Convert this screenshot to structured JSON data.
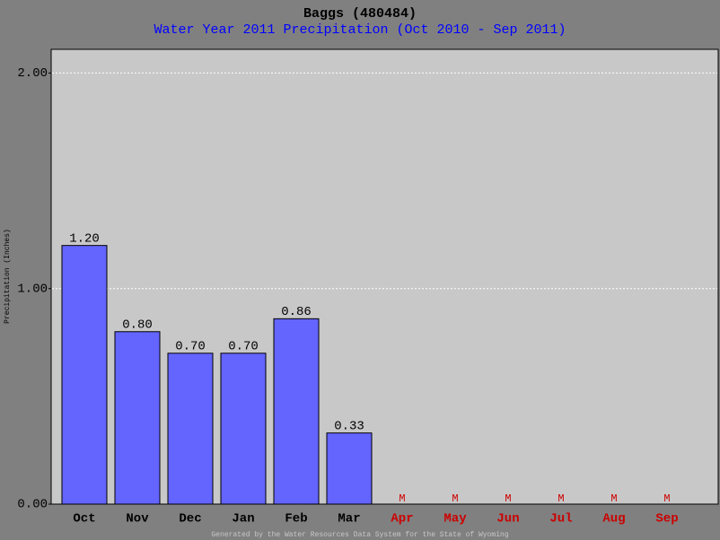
{
  "chart_data": {
    "type": "bar",
    "title": "Baggs (480484)",
    "subtitle": "Water Year 2011 Precipitation (Oct 2010 - Sep 2011)",
    "y_label": "Precipitation (Inches)",
    "footer": "Generated by the Water Resources Data System for the State of Wyoming",
    "categories": [
      "Oct",
      "Nov",
      "Dec",
      "Jan",
      "Feb",
      "Mar",
      "Apr",
      "May",
      "Jun",
      "Jul",
      "Aug",
      "Sep"
    ],
    "values": [
      1.2,
      0.8,
      0.7,
      0.7,
      0.86,
      0.33,
      null,
      null,
      null,
      null,
      null,
      null
    ],
    "value_labels": [
      "1.20",
      "0.80",
      "0.70",
      "0.70",
      "0.86",
      "0.33",
      "M",
      "M",
      "M",
      "M",
      "M",
      "M"
    ],
    "color": "#6464ff",
    "missing_color": "#cc0000",
    "ylim": [
      0,
      2.11
    ],
    "yticks": [
      {
        "value": 0,
        "label": "0.00"
      },
      {
        "value": 1,
        "label": "1.00"
      },
      {
        "value": 2,
        "label": "2.00"
      }
    ],
    "grid": true
  }
}
